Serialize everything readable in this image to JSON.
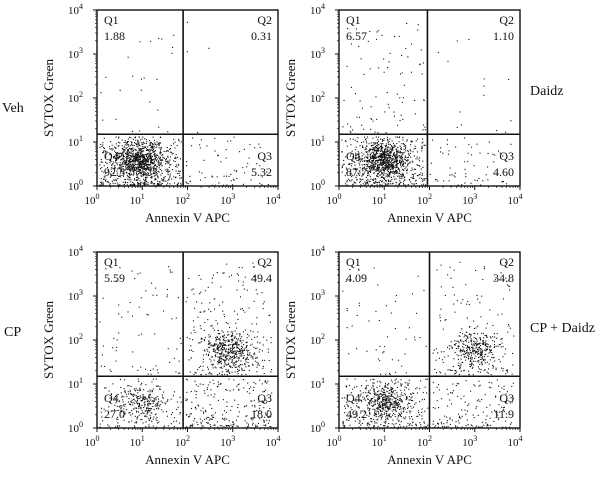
{
  "chart_data": [
    {
      "type": "scatter",
      "row_label": "Veh",
      "xlabel": "Annexin V APC",
      "ylabel": "SYTOX Green",
      "xlim": [
        1,
        10000
      ],
      "ylim": [
        1,
        10000
      ],
      "log_scale": true,
      "gate": {
        "x": 80,
        "y": 15
      },
      "quadrants": [
        {
          "name": "Q1",
          "value": "1.88"
        },
        {
          "name": "Q2",
          "value": "0.31"
        },
        {
          "name": "Q3",
          "value": "5.32"
        },
        {
          "name": "Q4",
          "value": "92.5"
        }
      ]
    },
    {
      "type": "scatter",
      "row_label": "Daidz",
      "xlabel": "Annexin V APC",
      "ylabel": "SYTOX Green",
      "xlim": [
        1,
        10000
      ],
      "ylim": [
        1,
        10000
      ],
      "log_scale": true,
      "gate": {
        "x": 90,
        "y": 15
      },
      "quadrants": [
        {
          "name": "Q1",
          "value": "6.57"
        },
        {
          "name": "Q2",
          "value": "1.10"
        },
        {
          "name": "Q3",
          "value": "4.60"
        },
        {
          "name": "Q4",
          "value": "87.7"
        }
      ]
    },
    {
      "type": "scatter",
      "row_label": "CP",
      "xlabel": "Annexin V APC",
      "ylabel": "SYTOX Green",
      "xlim": [
        1,
        10000
      ],
      "ylim": [
        1,
        10000
      ],
      "log_scale": true,
      "gate": {
        "x": 80,
        "y": 15
      },
      "quadrants": [
        {
          "name": "Q1",
          "value": "5.59"
        },
        {
          "name": "Q2",
          "value": "49.4"
        },
        {
          "name": "Q3",
          "value": "18.0"
        },
        {
          "name": "Q4",
          "value": "27.0"
        }
      ]
    },
    {
      "type": "scatter",
      "row_label": "CP + Daidz",
      "xlabel": "Annexin V APC",
      "ylabel": "SYTOX Green",
      "xlim": [
        1,
        10000
      ],
      "ylim": [
        1,
        10000
      ],
      "log_scale": true,
      "gate": {
        "x": 100,
        "y": 15
      },
      "quadrants": [
        {
          "name": "Q1",
          "value": "4.09"
        },
        {
          "name": "Q2",
          "value": "34.8"
        },
        {
          "name": "Q3",
          "value": "11.9"
        },
        {
          "name": "Q4",
          "value": "49.2"
        }
      ]
    }
  ]
}
